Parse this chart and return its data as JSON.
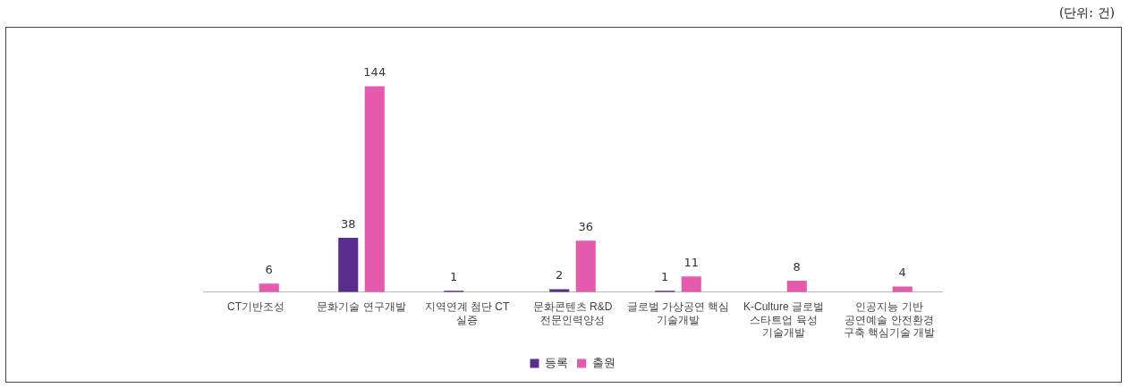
{
  "chart_data": {
    "type": "bar",
    "categories": [
      "CT기반조성",
      "문화기술 연구개발",
      "지역연계 첨단 CT 실증",
      "문화콘텐츠 R&D 전문인력양성",
      "글로벌 가상공연 핵심 기술개발",
      "K-Culture 글로벌 스타트업 육성 기술개발",
      "인공지능 기반 공연예술 안전환경 구축 핵심기술 개발"
    ],
    "series": [
      {
        "name": "등록",
        "color": "#5b2d90",
        "values": [
          null,
          38,
          1,
          2,
          1,
          null,
          null
        ]
      },
      {
        "name": "출원",
        "color": "#e65aae",
        "values": [
          6,
          144,
          null,
          36,
          11,
          8,
          4
        ]
      }
    ],
    "data_labels": true,
    "grid": false,
    "legend": "bottom",
    "tick_labels": "x",
    "annotations": [
      "(단위: 건)"
    ]
  }
}
